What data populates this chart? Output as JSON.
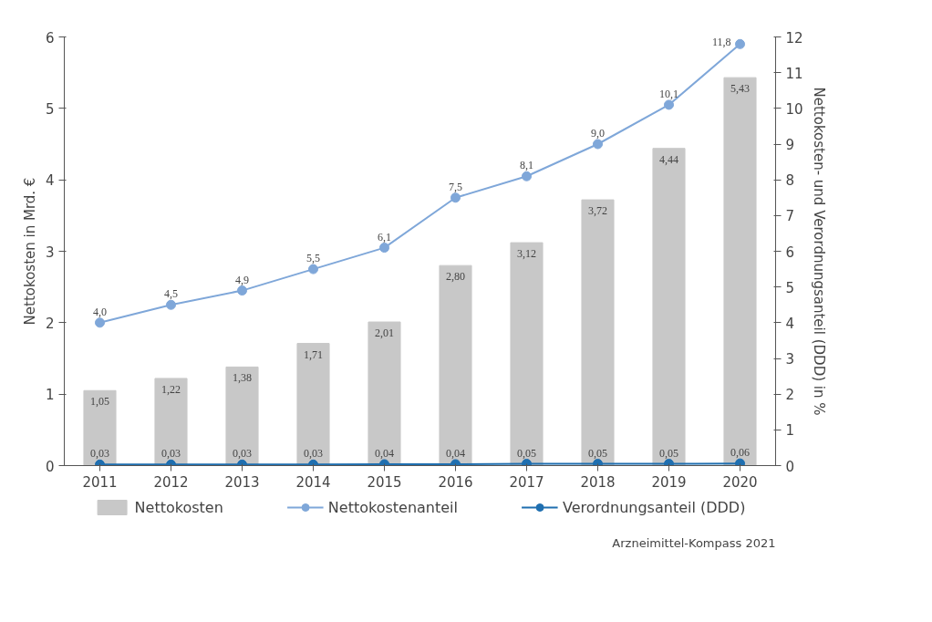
{
  "chart_data": {
    "type": "bar",
    "categories": [
      "2011",
      "2012",
      "2013",
      "2014",
      "2015",
      "2016",
      "2017",
      "2018",
      "2019",
      "2020"
    ],
    "ylabel": "Nettokosten in Mrd. €",
    "y2label": "Nettokosten- und Verordnungsanteil (DDD) in %",
    "ylim": [
      0,
      6
    ],
    "yticks": [
      0,
      1,
      2,
      3,
      4,
      5,
      6
    ],
    "y2lim": [
      0,
      12
    ],
    "y2ticks": [
      0,
      1,
      2,
      3,
      4,
      5,
      6,
      7,
      8,
      9,
      10,
      11,
      12
    ],
    "grid": false,
    "legend": "bottom",
    "marker": "circle",
    "line_style": "solid",
    "series": [
      {
        "name": "Nettokosten",
        "color": "#c8c8c8",
        "values": [
          1.05,
          1.22,
          1.38,
          1.71,
          2.01,
          2.8,
          3.12,
          3.72,
          4.44,
          5.43
        ],
        "value_labels": [
          "1,05",
          "1,22",
          "1,38",
          "1,71",
          "2,01",
          "2,80",
          "3,12",
          "3,72",
          "4,44",
          "5,43"
        ]
      },
      {
        "name": "Nettokostenanteil",
        "type": "line",
        "axis": "y2",
        "color": "#7fa7d9",
        "values": [
          4.0,
          4.5,
          4.9,
          5.5,
          6.1,
          7.5,
          8.1,
          9.0,
          10.1,
          11.8
        ],
        "value_labels": [
          "4,0",
          "4,5",
          "4,9",
          "5,5",
          "6,1",
          "7,5",
          "8,1",
          "9,0",
          "10,1",
          "11,8"
        ]
      },
      {
        "name": "Verordnungsanteil (DDD)",
        "type": "line",
        "axis": "y2",
        "color": "#1f6fb0",
        "values": [
          0.03,
          0.03,
          0.03,
          0.03,
          0.04,
          0.04,
          0.05,
          0.05,
          0.05,
          0.06
        ],
        "value_labels": [
          "0,03",
          "0,03",
          "0,03",
          "0,03",
          "0,04",
          "0,04",
          "0,05",
          "0,05",
          "0,05",
          "0,06"
        ]
      }
    ],
    "annotations": [
      "Arzneimittel-Kompass 2021"
    ]
  }
}
